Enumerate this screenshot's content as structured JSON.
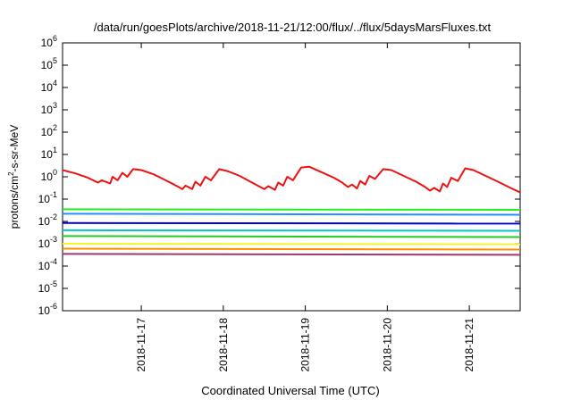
{
  "chart_data": {
    "type": "line",
    "title": "/data/run/goesPlots/archive/2018-11-21/12:00/flux/../flux/5daysMarsFluxes.txt",
    "xlabel": "Coordinated Universal Time (UTC)",
    "ylabel": {
      "base": "protons/cm",
      "sup": "2",
      "rest": "-s-sr-MeV"
    },
    "yscale": "log",
    "ylim_exp": [
      -6,
      6
    ],
    "y_tick_exponents": [
      -6,
      -5,
      -4,
      -3,
      -2,
      -1,
      0,
      1,
      2,
      3,
      4,
      5,
      6
    ],
    "xlim_days": [
      16.04,
      21.62
    ],
    "x_ticks": [
      {
        "day": 17,
        "label": "2018-11-17"
      },
      {
        "day": 18,
        "label": "2018-11-18"
      },
      {
        "day": 19,
        "label": "2018-11-19"
      },
      {
        "day": 20,
        "label": "2018-11-20"
      },
      {
        "day": 21,
        "label": "2018-11-21"
      }
    ],
    "grid": false,
    "series": [
      {
        "color": "#ee1111",
        "x": [
          16.04,
          16.2,
          16.35,
          16.47,
          16.52,
          16.62,
          16.65,
          16.71,
          16.77,
          16.83,
          16.9,
          17.0,
          17.15,
          17.28,
          17.4,
          17.5,
          17.54,
          17.62,
          17.66,
          17.72,
          17.78,
          17.85,
          17.95,
          18.05,
          18.2,
          18.33,
          18.45,
          18.5,
          18.55,
          18.63,
          18.67,
          18.73,
          18.78,
          18.85,
          18.95,
          19.05,
          19.2,
          19.35,
          19.45,
          19.52,
          19.57,
          19.63,
          19.67,
          19.73,
          19.78,
          19.85,
          19.95,
          20.05,
          20.2,
          20.35,
          20.46,
          20.52,
          20.57,
          20.64,
          20.68,
          20.73,
          20.78,
          20.86,
          20.95,
          21.05,
          21.2,
          21.35,
          21.5,
          21.62
        ],
        "y": [
          2.0,
          1.4,
          0.9,
          0.55,
          0.7,
          0.5,
          1.0,
          0.7,
          1.5,
          1.0,
          2.2,
          2.0,
          1.3,
          0.75,
          0.45,
          0.28,
          0.4,
          0.28,
          0.6,
          0.4,
          1.0,
          0.7,
          2.2,
          1.8,
          1.1,
          0.6,
          0.35,
          0.28,
          0.38,
          0.26,
          0.55,
          0.4,
          1.0,
          0.7,
          2.6,
          2.8,
          1.6,
          0.9,
          0.55,
          0.35,
          0.45,
          0.3,
          0.65,
          0.45,
          1.1,
          0.8,
          2.2,
          2.0,
          1.1,
          0.6,
          0.35,
          0.24,
          0.32,
          0.22,
          0.5,
          0.35,
          0.9,
          0.65,
          2.4,
          2.0,
          1.1,
          0.6,
          0.32,
          0.2
        ]
      },
      {
        "color": "#22ee22",
        "x": [
          16.04,
          21.62
        ],
        "y": [
          0.035,
          0.033
        ]
      },
      {
        "color": "#1e90ff",
        "x": [
          16.04,
          21.62
        ],
        "y": [
          0.022,
          0.02
        ]
      },
      {
        "color": "#0000dd",
        "x": [
          16.04,
          21.62
        ],
        "y": [
          0.0085,
          0.008
        ]
      },
      {
        "color": "#00c8c8",
        "x": [
          16.04,
          21.62
        ],
        "y": [
          0.004,
          0.0038
        ]
      },
      {
        "color": "#22cc22",
        "x": [
          16.04,
          21.62
        ],
        "y": [
          0.0022,
          0.002
        ]
      },
      {
        "color": "#f4f42a",
        "x": [
          16.04,
          21.62
        ],
        "y": [
          0.001,
          0.00095
        ]
      },
      {
        "color": "#ff8c00",
        "x": [
          16.04,
          21.62
        ],
        "y": [
          0.0006,
          0.00055
        ]
      },
      {
        "color": "#9b3a6e",
        "x": [
          16.04,
          21.62
        ],
        "y": [
          0.00035,
          0.00032
        ]
      }
    ]
  }
}
